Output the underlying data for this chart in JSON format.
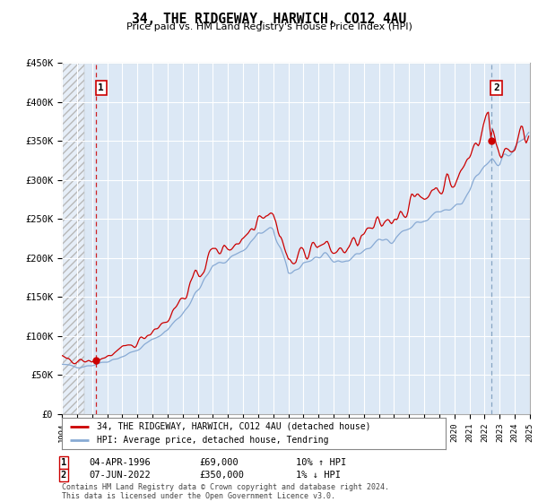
{
  "title": "34, THE RIDGEWAY, HARWICH, CO12 4AU",
  "subtitle": "Price paid vs. HM Land Registry's House Price Index (HPI)",
  "background_color": "#dce8f5",
  "grid_color": "#ffffff",
  "line1_color": "#cc0000",
  "line2_color": "#88aad4",
  "marker_color": "#cc0000",
  "annotation_box_color": "#cc0000",
  "legend_label1": "34, THE RIDGEWAY, HARWICH, CO12 4AU (detached house)",
  "legend_label2": "HPI: Average price, detached house, Tendring",
  "note1_label": "1",
  "note1_date": "04-APR-1996",
  "note1_price": "£69,000",
  "note1_hpi": "10% ↑ HPI",
  "note2_label": "2",
  "note2_date": "07-JUN-2022",
  "note2_price": "£350,000",
  "note2_hpi": "1% ↓ HPI",
  "copyright": "Contains HM Land Registry data © Crown copyright and database right 2024.\nThis data is licensed under the Open Government Licence v3.0.",
  "sale1_year": 1996.25,
  "sale1_price": 69000,
  "sale2_year": 2022.42,
  "sale2_price": 350000,
  "xmin": 1994,
  "xmax": 2025,
  "ylim": [
    0,
    450000
  ],
  "yticks": [
    0,
    50000,
    100000,
    150000,
    200000,
    250000,
    300000,
    350000,
    400000,
    450000
  ],
  "ytick_labels": [
    "£0",
    "£50K",
    "£100K",
    "£150K",
    "£200K",
    "£250K",
    "£300K",
    "£350K",
    "£400K",
    "£450K"
  ],
  "xticks": [
    1994,
    1995,
    1996,
    1997,
    1998,
    1999,
    2000,
    2001,
    2002,
    2003,
    2004,
    2005,
    2006,
    2007,
    2008,
    2009,
    2010,
    2011,
    2012,
    2013,
    2014,
    2015,
    2016,
    2017,
    2018,
    2019,
    2020,
    2021,
    2022,
    2023,
    2024,
    2025
  ],
  "hatch_xmax": 1995.5
}
